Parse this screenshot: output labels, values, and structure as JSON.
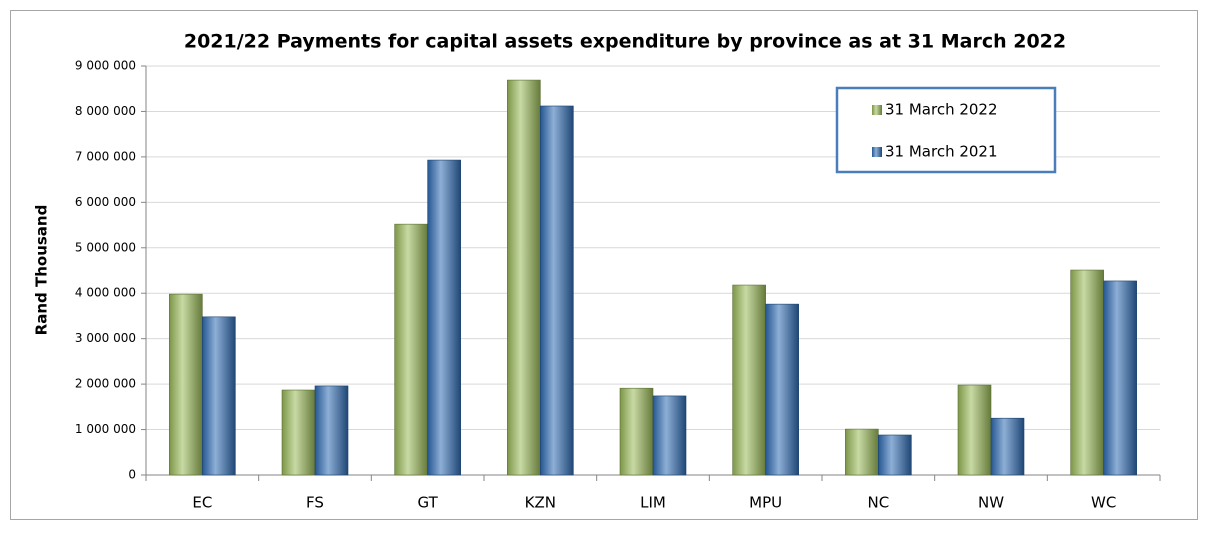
{
  "chart_data": {
    "type": "bar",
    "title": "2021/22 Payments for capital assets expenditure by province as at 31 March 2022",
    "y_label": "Rand Thousand",
    "categories": [
      "EC",
      "FS",
      "GT",
      "KZN",
      "LIM",
      "MPU",
      "NC",
      "NW",
      "WC"
    ],
    "series": [
      {
        "name": "31 March 2022",
        "color": "#9bbb59",
        "values": [
          3980000,
          1870000,
          5520000,
          8690000,
          1910000,
          4180000,
          1010000,
          1980000,
          4510000
        ]
      },
      {
        "name": "31 March 2021",
        "color": "#2f6db5",
        "values": [
          3480000,
          1960000,
          6930000,
          8120000,
          1740000,
          3760000,
          880000,
          1250000,
          4270000
        ]
      }
    ],
    "ylim": [
      0,
      9000000
    ],
    "yticks": [
      0,
      {
        "value": 1000000,
        "label": "1 000 000"
      },
      {
        "value": 2000000,
        "label": "2 000 000"
      },
      {
        "value": 3000000,
        "label": "3 000 000"
      },
      {
        "value": 4000000,
        "label": "4 000 000"
      },
      {
        "value": 5000000,
        "label": "5 000 000"
      },
      {
        "value": 6000000,
        "label": "6 000 000"
      },
      {
        "value": 7000000,
        "label": "7 000 000"
      },
      {
        "value": 8000000,
        "label": "8 000 000"
      },
      {
        "value": 9000000,
        "label": "9 000 000"
      }
    ],
    "grid": true,
    "legend": "top-right"
  }
}
